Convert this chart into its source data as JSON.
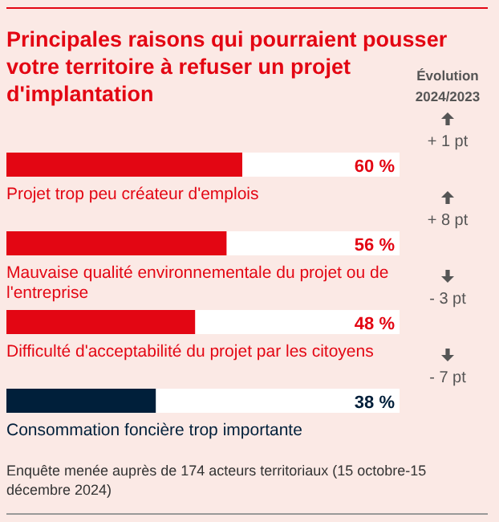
{
  "chart_data": {
    "type": "bar",
    "orientation": "horizontal",
    "title": "Principales raisons qui pourraient pousser votre territoire à refuser un projet d'implantation",
    "categories": [
      "Projet trop peu créateur d'emplois",
      "Mauvaise qualité environnementale du projet ou de l'entreprise",
      "Difficulté d'acceptabilité du projet par les citoyens",
      "Consommation foncière trop importante"
    ],
    "values": [
      60,
      56,
      48,
      38
    ],
    "colors": [
      "#e30613",
      "#e30613",
      "#e30613",
      "#001f3a"
    ],
    "value_labels": [
      "60 %",
      "56 %",
      "48 %",
      "38 %"
    ],
    "xlim": [
      0,
      100
    ],
    "annotations": [
      "Évolution 2024/2023",
      "+ 1 pt",
      "+ 8 pt",
      "- 3 pt",
      "- 7 pt",
      "Enquête menée auprès de 174 acteurs territoriaux (15 octobre-15 décembre 2024)"
    ]
  }
}
